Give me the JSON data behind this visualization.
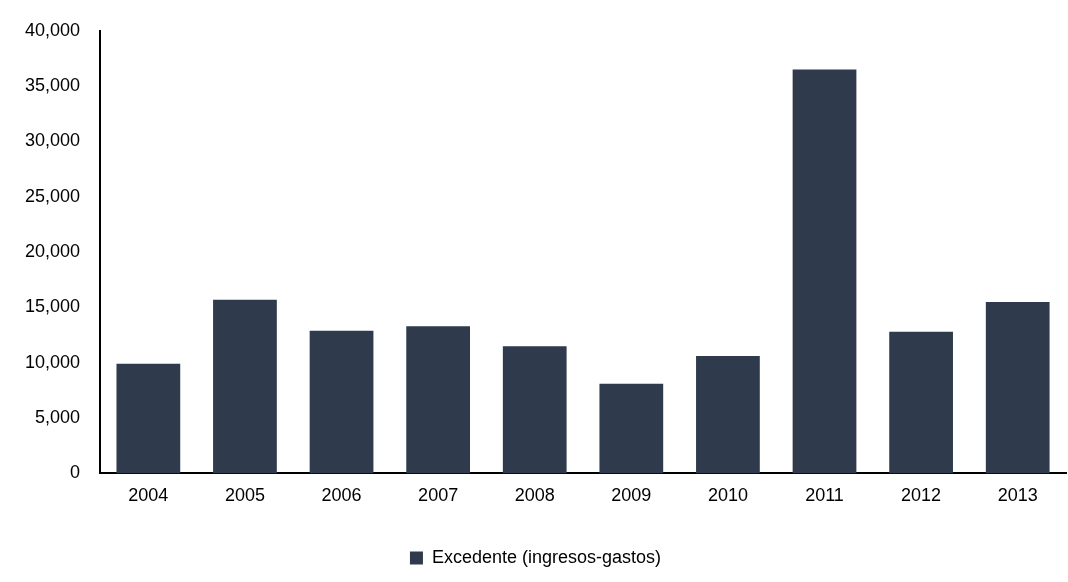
{
  "chart_data": {
    "type": "bar",
    "categories": [
      "2004",
      "2005",
      "2006",
      "2007",
      "2008",
      "2009",
      "2010",
      "2011",
      "2012",
      "2013"
    ],
    "series": [
      {
        "name": "Excedente (ingresos-gastos)",
        "color": "#2f3b4c",
        "values": [
          9900,
          15700,
          12900,
          13300,
          11500,
          8100,
          10600,
          36500,
          12800,
          15500
        ]
      }
    ],
    "ylim": [
      0,
      40000
    ],
    "yticks": [
      {
        "value": 0,
        "label": "0"
      },
      {
        "value": 5000,
        "label": "5,000"
      },
      {
        "value": 10000,
        "label": "10,000"
      },
      {
        "value": 15000,
        "label": "15,000"
      },
      {
        "value": 20000,
        "label": "20,000"
      },
      {
        "value": 25000,
        "label": "25,000"
      },
      {
        "value": 30000,
        "label": "30,000"
      },
      {
        "value": 35000,
        "label": "35,000"
      },
      {
        "value": 40000,
        "label": "40,000"
      }
    ],
    "grid": false,
    "legend": "bottom"
  }
}
